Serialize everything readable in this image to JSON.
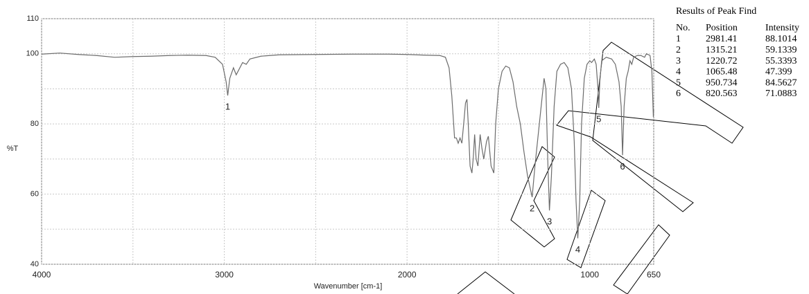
{
  "chart_data": {
    "type": "line",
    "xlabel": "Wavenumber [cm-1]",
    "ylabel": "%T",
    "color": "#6b6b6b",
    "xlim": [
      4000,
      650
    ],
    "ylim": [
      40,
      110
    ],
    "xticks": [
      4000,
      3000,
      2000,
      1000,
      650
    ],
    "yticks": [
      40,
      60,
      80,
      100,
      110
    ],
    "x_minor_grid": [
      3500,
      2500,
      1500
    ],
    "y_minor_grid": [
      50,
      70,
      90
    ],
    "grid": true,
    "x": [
      4000,
      3900,
      3800,
      3700,
      3600,
      3500,
      3400,
      3300,
      3200,
      3100,
      3050,
      3010,
      2990,
      2981.41,
      2970,
      2950,
      2935,
      2920,
      2900,
      2880,
      2860,
      2800,
      2700,
      2500,
      2300,
      2100,
      2000,
      1900,
      1820,
      1790,
      1770,
      1755,
      1745,
      1740,
      1730,
      1720,
      1710,
      1700,
      1690,
      1680,
      1672,
      1665,
      1655,
      1645,
      1638,
      1630,
      1622,
      1612,
      1600,
      1590,
      1580,
      1565,
      1555,
      1540,
      1525,
      1515,
      1500,
      1480,
      1460,
      1440,
      1420,
      1400,
      1380,
      1360,
      1340,
      1315.21,
      1300,
      1280,
      1260,
      1250,
      1240,
      1230,
      1220.72,
      1210,
      1195,
      1180,
      1160,
      1140,
      1120,
      1100,
      1085,
      1075,
      1065.48,
      1055,
      1045,
      1030,
      1015,
      1000,
      990,
      975,
      965,
      955,
      950.734,
      945,
      935,
      910,
      880,
      860,
      840,
      828,
      820.563,
      812,
      800,
      790,
      780,
      770,
      760,
      740,
      720,
      700,
      690,
      670,
      660,
      652,
      650
    ],
    "values": [
      99.9,
      100.2,
      99.8,
      99.5,
      99.0,
      99.2,
      99.3,
      99.5,
      99.6,
      99.5,
      99.0,
      97,
      92,
      88.1014,
      93,
      96,
      94,
      95.5,
      97.5,
      97,
      98.5,
      99.3,
      99.7,
      99.8,
      99.9,
      99.9,
      99.8,
      99.6,
      99.5,
      99.0,
      96,
      88,
      80,
      76,
      76,
      74.5,
      76,
      74.5,
      80,
      86,
      87,
      80,
      68,
      66,
      70,
      77,
      70,
      68,
      77,
      73,
      70,
      75,
      76.5,
      68,
      66,
      80,
      90,
      95,
      96.5,
      96,
      92,
      85,
      80,
      72,
      65,
      59.1339,
      68,
      78,
      88,
      93,
      90,
      70,
      55.3393,
      65,
      85,
      95,
      97,
      97.5,
      96,
      90,
      75,
      58,
      47.399,
      58,
      80,
      93,
      97,
      98,
      97.5,
      98.5,
      97,
      90,
      84.5627,
      92,
      98,
      99,
      98.5,
      97,
      92,
      85,
      71.0883,
      85,
      93,
      95,
      98,
      97,
      99,
      99.5,
      99.5,
      99,
      100,
      99.5,
      95,
      82,
      84
    ]
  },
  "peak_table": {
    "title": "Results of Peak Find",
    "headers": [
      "No.",
      "Position",
      "Intensity"
    ],
    "rows": [
      [
        1,
        2981.41,
        88.1014
      ],
      [
        2,
        1315.21,
        59.1339
      ],
      [
        3,
        1220.72,
        55.3393
      ],
      [
        4,
        1065.48,
        47.399
      ],
      [
        5,
        950.734,
        84.5627
      ],
      [
        6,
        820.563,
        71.0883
      ]
    ]
  }
}
